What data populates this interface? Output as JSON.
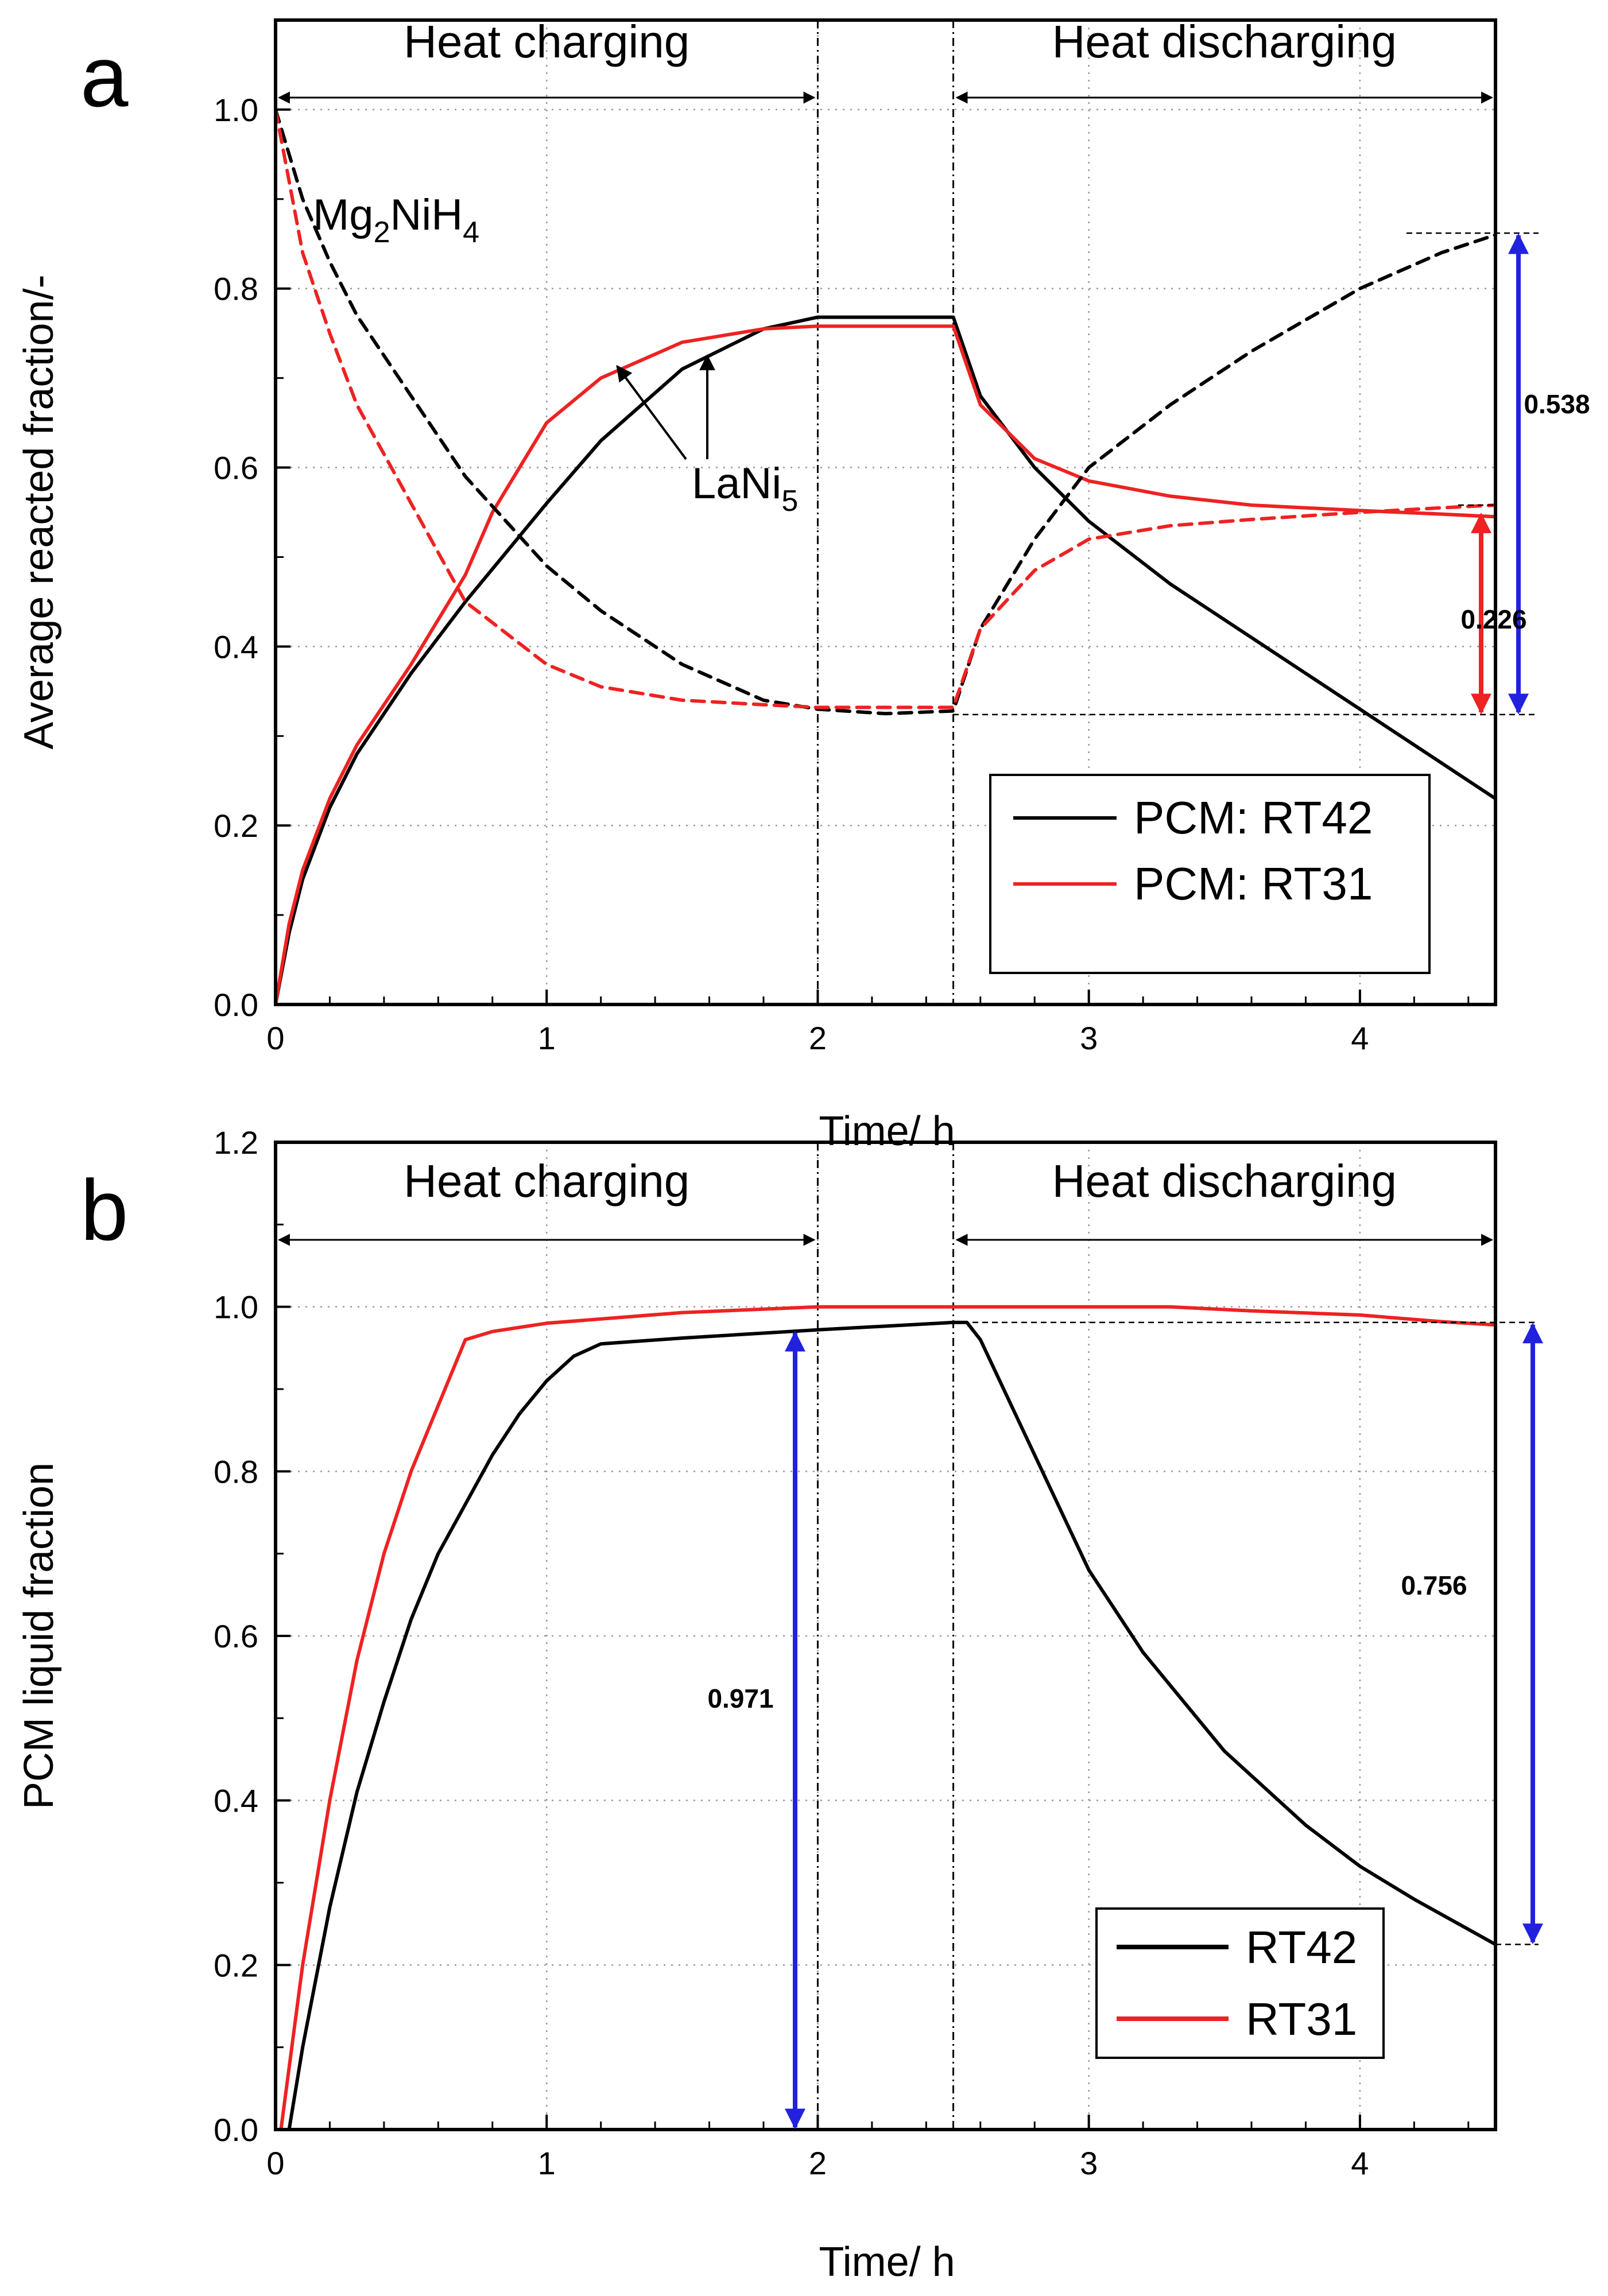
{
  "colors": {
    "rt42": "#000000",
    "rt31": "#ee2222",
    "blue_arrow": "#2222dd",
    "red_arrow": "#ee2222"
  },
  "chart_data": [
    {
      "panel": "a",
      "type": "line",
      "xlabel": "Time/ h",
      "ylabel": "Average reacted fraction/-",
      "xlim": [
        0,
        4.5
      ],
      "ylim": [
        0,
        1.1
      ],
      "x_ticks": [
        "0",
        "1",
        "2",
        "3",
        "4"
      ],
      "y_ticks": [
        "0.0",
        "0.2",
        "0.4",
        "0.6",
        "0.8",
        "1.0"
      ],
      "grid": true,
      "phases": [
        {
          "label": "Heat charging",
          "from": 0,
          "to": 2
        },
        {
          "label": "Heat discharging",
          "from": 2.5,
          "to": 4.5
        }
      ],
      "phase_boundaries": [
        2,
        2.5
      ],
      "species_labels": {
        "mg2nih4": {
          "base": "Mg",
          "sub1": "2",
          "mid": "NiH",
          "sub2": "4"
        },
        "lani5": {
          "base": "LaNi",
          "sub": "5"
        }
      },
      "annotations": [
        {
          "text": "0.538",
          "from": 0.324,
          "to": 0.862
        },
        {
          "text": "0.226",
          "from": 0.324,
          "to": 0.55
        }
      ],
      "legend": [
        "PCM: RT42",
        "PCM: RT31"
      ],
      "series": [
        {
          "name": "PCM: RT42",
          "species": "LaNi5",
          "style": "solid",
          "color": "rt42",
          "x": [
            0,
            0.05,
            0.1,
            0.2,
            0.3,
            0.5,
            0.7,
            1.0,
            1.2,
            1.5,
            1.8,
            2.0,
            2.25,
            2.5,
            2.6,
            2.8,
            3.0,
            3.3,
            3.6,
            4.0,
            4.3,
            4.5
          ],
          "y": [
            0,
            0.08,
            0.14,
            0.22,
            0.28,
            0.37,
            0.45,
            0.56,
            0.63,
            0.71,
            0.755,
            0.768,
            0.768,
            0.768,
            0.68,
            0.6,
            0.54,
            0.47,
            0.41,
            0.33,
            0.27,
            0.23
          ]
        },
        {
          "name": "PCM: RT31",
          "species": "LaNi5",
          "style": "solid",
          "color": "rt31",
          "x": [
            0,
            0.05,
            0.1,
            0.2,
            0.3,
            0.5,
            0.7,
            0.8,
            1.0,
            1.2,
            1.5,
            1.8,
            2.0,
            2.25,
            2.5,
            2.6,
            2.8,
            3.0,
            3.3,
            3.6,
            4.0,
            4.3,
            4.5
          ],
          "y": [
            0,
            0.09,
            0.15,
            0.23,
            0.29,
            0.38,
            0.48,
            0.55,
            0.65,
            0.7,
            0.74,
            0.755,
            0.758,
            0.758,
            0.758,
            0.67,
            0.61,
            0.585,
            0.568,
            0.558,
            0.552,
            0.548,
            0.545
          ]
        },
        {
          "name": "PCM: RT42",
          "species": "Mg2NiH4",
          "style": "dashed",
          "color": "rt42",
          "x": [
            0,
            0.05,
            0.1,
            0.2,
            0.3,
            0.5,
            0.7,
            1.0,
            1.2,
            1.5,
            1.8,
            2.0,
            2.25,
            2.5,
            2.6,
            2.8,
            3.0,
            3.3,
            3.6,
            4.0,
            4.3,
            4.5
          ],
          "y": [
            1.0,
            0.95,
            0.9,
            0.83,
            0.77,
            0.68,
            0.59,
            0.49,
            0.44,
            0.38,
            0.34,
            0.33,
            0.325,
            0.328,
            0.42,
            0.52,
            0.6,
            0.67,
            0.73,
            0.8,
            0.84,
            0.86
          ]
        },
        {
          "name": "PCM: RT31",
          "species": "Mg2NiH4",
          "style": "dashed",
          "color": "rt31",
          "x": [
            0,
            0.05,
            0.1,
            0.2,
            0.3,
            0.5,
            0.7,
            1.0,
            1.2,
            1.5,
            1.8,
            2.0,
            2.25,
            2.5,
            2.6,
            2.8,
            3.0,
            3.3,
            3.6,
            4.0,
            4.3,
            4.5
          ],
          "y": [
            1.0,
            0.92,
            0.84,
            0.75,
            0.67,
            0.56,
            0.45,
            0.38,
            0.355,
            0.34,
            0.335,
            0.332,
            0.332,
            0.332,
            0.42,
            0.485,
            0.52,
            0.535,
            0.542,
            0.55,
            0.555,
            0.558
          ]
        }
      ]
    },
    {
      "panel": "b",
      "type": "line",
      "xlabel": "Time/ h",
      "ylabel": "PCM liquid fraction",
      "xlim": [
        0,
        4.5
      ],
      "ylim": [
        0,
        1.2
      ],
      "x_ticks": [
        "0",
        "1",
        "2",
        "3",
        "4"
      ],
      "y_ticks": [
        "0.0",
        "0.2",
        "0.4",
        "0.6",
        "0.8",
        "1.0",
        "1.2"
      ],
      "grid": true,
      "phases": [
        {
          "label": "Heat charging",
          "from": 0,
          "to": 2
        },
        {
          "label": "Heat discharging",
          "from": 2.5,
          "to": 4.5
        }
      ],
      "phase_boundaries": [
        2,
        2.5
      ],
      "annotations": [
        {
          "text": "0.971",
          "from": 0,
          "to": 0.971
        },
        {
          "text": "0.756",
          "from": 0.225,
          "to": 0.981
        }
      ],
      "legend": [
        "RT42",
        "RT31"
      ],
      "series": [
        {
          "name": "RT42",
          "color": "rt42",
          "x": [
            0,
            0.05,
            0.1,
            0.2,
            0.3,
            0.4,
            0.5,
            0.6,
            0.7,
            0.8,
            0.9,
            1.0,
            1.1,
            1.2,
            1.5,
            2.0,
            2.5,
            2.55,
            2.6,
            2.8,
            3.0,
            3.2,
            3.5,
            3.8,
            4.0,
            4.2,
            4.5
          ],
          "y": [
            0,
            0,
            0.1,
            0.27,
            0.41,
            0.52,
            0.62,
            0.7,
            0.76,
            0.82,
            0.87,
            0.91,
            0.94,
            0.955,
            0.962,
            0.972,
            0.981,
            0.981,
            0.96,
            0.82,
            0.68,
            0.58,
            0.46,
            0.37,
            0.32,
            0.28,
            0.225
          ]
        },
        {
          "name": "RT31",
          "color": "rt31",
          "x": [
            0,
            0.02,
            0.1,
            0.2,
            0.3,
            0.4,
            0.5,
            0.6,
            0.7,
            0.8,
            1.0,
            1.5,
            2.0,
            2.5,
            3.0,
            3.3,
            3.6,
            4.0,
            4.3,
            4.5
          ],
          "y": [
            0,
            0,
            0.2,
            0.4,
            0.57,
            0.7,
            0.8,
            0.88,
            0.96,
            0.97,
            0.98,
            0.993,
            1.0,
            1.0,
            1.0,
            1.0,
            0.995,
            0.99,
            0.982,
            0.978
          ]
        }
      ]
    }
  ]
}
